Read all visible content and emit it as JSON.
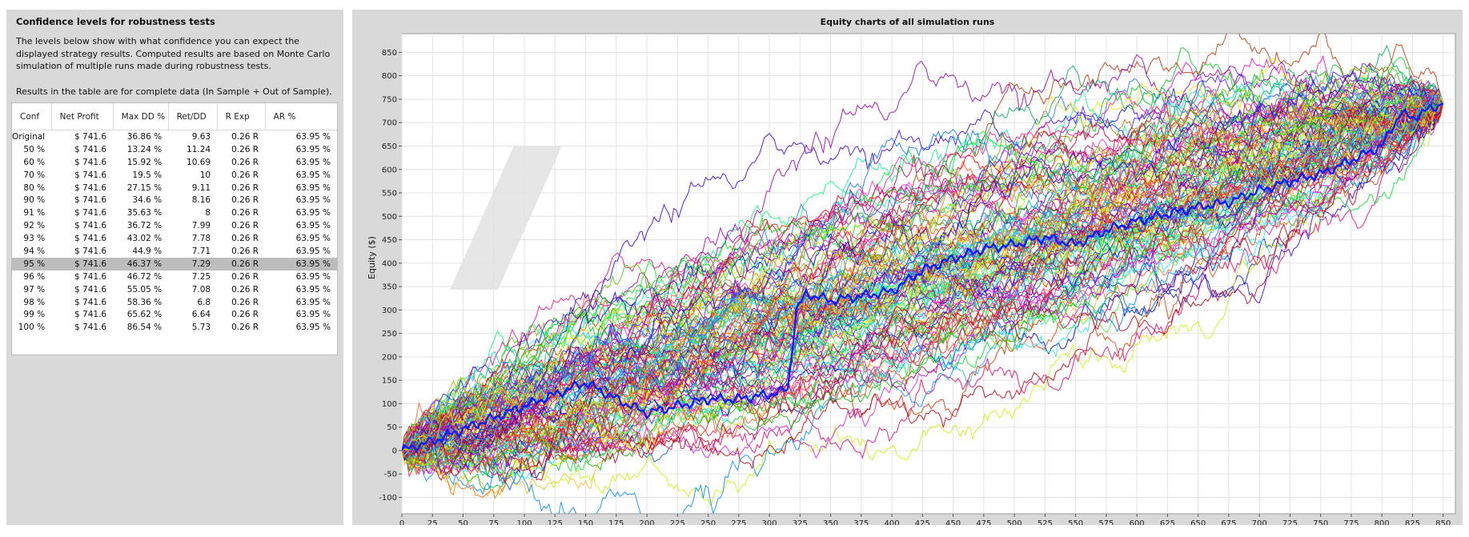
{
  "left": {
    "title": "Confidence levels for robustness tests",
    "description": "The levels below show with what confidence you can expect the displayed strategy results. Computed results are based on Monte Carlo simulation of multiple runs made during robustness tests.",
    "note": "Results in the table are for complete data (In Sample + Out of Sample).",
    "table": {
      "headers": [
        "Conf",
        "Net Profit",
        "Max DD %",
        "Ret/DD",
        "R Exp",
        "AR %"
      ],
      "selected_index": 10,
      "rows": [
        [
          "Original",
          "$ 741.6",
          "36.86 %",
          "9.63",
          "0.26 R",
          "63.95 %"
        ],
        [
          "50 %",
          "$ 741.6",
          "13.24 %",
          "11.24",
          "0.26 R",
          "63.95 %"
        ],
        [
          "60 %",
          "$ 741.6",
          "15.92 %",
          "10.69",
          "0.26 R",
          "63.95 %"
        ],
        [
          "70 %",
          "$ 741.6",
          "19.5 %",
          "10",
          "0.26 R",
          "63.95 %"
        ],
        [
          "80 %",
          "$ 741.6",
          "27.15 %",
          "9.11",
          "0.26 R",
          "63.95 %"
        ],
        [
          "90 %",
          "$ 741.6",
          "34.6 %",
          "8.16",
          "0.26 R",
          "63.95 %"
        ],
        [
          "91 %",
          "$ 741.6",
          "35.63 %",
          "8",
          "0.26 R",
          "63.95 %"
        ],
        [
          "92 %",
          "$ 741.6",
          "36.72 %",
          "7.99",
          "0.26 R",
          "63.95 %"
        ],
        [
          "93 %",
          "$ 741.6",
          "43.02 %",
          "7.78",
          "0.26 R",
          "63.95 %"
        ],
        [
          "94 %",
          "$ 741.6",
          "44.9 %",
          "7.71",
          "0.26 R",
          "63.95 %"
        ],
        [
          "95 %",
          "$ 741.6",
          "46.37 %",
          "7.29",
          "0.26 R",
          "63.95 %"
        ],
        [
          "96 %",
          "$ 741.6",
          "46.72 %",
          "7.25",
          "0.26 R",
          "63.95 %"
        ],
        [
          "97 %",
          "$ 741.6",
          "55.05 %",
          "7.08",
          "0.26 R",
          "63.95 %"
        ],
        [
          "98 %",
          "$ 741.6",
          "58.36 %",
          "6.8",
          "0.26 R",
          "63.95 %"
        ],
        [
          "99 %",
          "$ 741.6",
          "65.62 %",
          "6.64",
          "0.26 R",
          "63.95 %"
        ],
        [
          "100 %",
          "$ 741.6",
          "86.54 %",
          "5.73",
          "0.26 R",
          "63.95 %"
        ]
      ]
    }
  },
  "chart_data": {
    "type": "line",
    "title": "Equity charts of all simulation runs",
    "xlabel": "",
    "ylabel": "Equity ($)",
    "xlim": [
      0,
      860
    ],
    "ylim": [
      -135,
      890
    ],
    "x_ticks": [
      0,
      25,
      50,
      75,
      100,
      125,
      150,
      175,
      200,
      225,
      250,
      275,
      300,
      325,
      350,
      375,
      400,
      425,
      450,
      475,
      500,
      525,
      550,
      575,
      600,
      625,
      650,
      675,
      700,
      725,
      750,
      775,
      800,
      825,
      850
    ],
    "y_ticks": [
      -100,
      -50,
      0,
      50,
      100,
      150,
      200,
      250,
      300,
      350,
      400,
      450,
      500,
      550,
      600,
      650,
      700,
      750,
      800,
      850
    ],
    "grid": true,
    "legend": "none",
    "simulated_run_count": 120,
    "final_value": 741.6,
    "original_run": {
      "name": "Original",
      "color": "#0a1eff",
      "x": [
        0,
        25,
        50,
        75,
        100,
        125,
        150,
        175,
        200,
        225,
        250,
        275,
        300,
        315,
        322,
        330,
        350,
        375,
        400,
        425,
        450,
        475,
        500,
        525,
        550,
        575,
        600,
        625,
        650,
        675,
        700,
        725,
        750,
        775,
        800,
        815,
        825,
        840,
        850
      ],
      "y": [
        0,
        20,
        45,
        70,
        95,
        120,
        145,
        110,
        80,
        95,
        110,
        110,
        120,
        130,
        300,
        335,
        320,
        330,
        340,
        385,
        410,
        430,
        440,
        455,
        440,
        470,
        490,
        505,
        520,
        530,
        555,
        575,
        590,
        620,
        650,
        720,
        710,
        730,
        741.6
      ]
    }
  }
}
